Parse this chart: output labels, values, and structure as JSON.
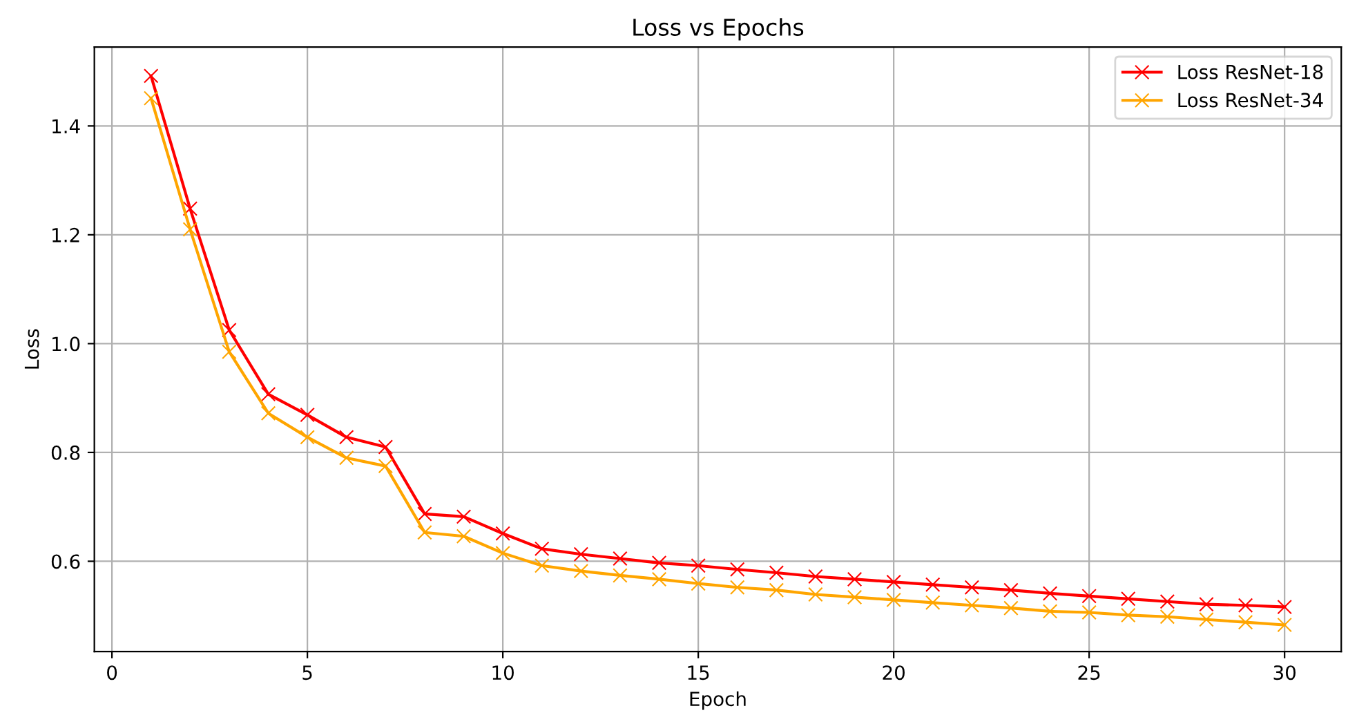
{
  "chart_data": {
    "type": "line",
    "title": "Loss vs Epochs",
    "xlabel": "Epoch",
    "ylabel": "Loss",
    "x": [
      1,
      2,
      3,
      4,
      5,
      6,
      7,
      8,
      9,
      10,
      11,
      12,
      13,
      14,
      15,
      16,
      17,
      18,
      19,
      20,
      21,
      22,
      23,
      24,
      25,
      26,
      27,
      28,
      29,
      30
    ],
    "series": [
      {
        "name": "Loss ResNet-18",
        "color": "#ff0000",
        "values": [
          1.492,
          1.248,
          1.025,
          0.907,
          0.869,
          0.828,
          0.81,
          0.687,
          0.682,
          0.651,
          0.623,
          0.613,
          0.605,
          0.597,
          0.592,
          0.585,
          0.579,
          0.572,
          0.567,
          0.562,
          0.557,
          0.552,
          0.547,
          0.541,
          0.536,
          0.531,
          0.526,
          0.521,
          0.519,
          0.516
        ]
      },
      {
        "name": "Loss ResNet-34",
        "color": "#ffa500",
        "values": [
          1.451,
          1.21,
          0.985,
          0.872,
          0.828,
          0.79,
          0.775,
          0.653,
          0.646,
          0.615,
          0.592,
          0.582,
          0.574,
          0.567,
          0.559,
          0.552,
          0.547,
          0.539,
          0.534,
          0.529,
          0.524,
          0.519,
          0.514,
          0.508,
          0.506,
          0.501,
          0.498,
          0.493,
          0.488,
          0.483
        ]
      }
    ],
    "xlim": [
      -0.45,
      31.45
    ],
    "xticks": [
      0,
      5,
      10,
      15,
      20,
      25,
      30
    ],
    "ylim": [
      0.434,
      1.545
    ],
    "yticks": [
      {
        "value": 0.6,
        "label": "0.6"
      },
      {
        "value": 0.8,
        "label": "0.8"
      },
      {
        "value": 1.0,
        "label": "1.0"
      },
      {
        "value": 1.2,
        "label": "1.2"
      },
      {
        "value": 1.4,
        "label": "1.4"
      }
    ],
    "grid": true,
    "legend": "top right",
    "marker": "cross",
    "line_style": "solid"
  }
}
